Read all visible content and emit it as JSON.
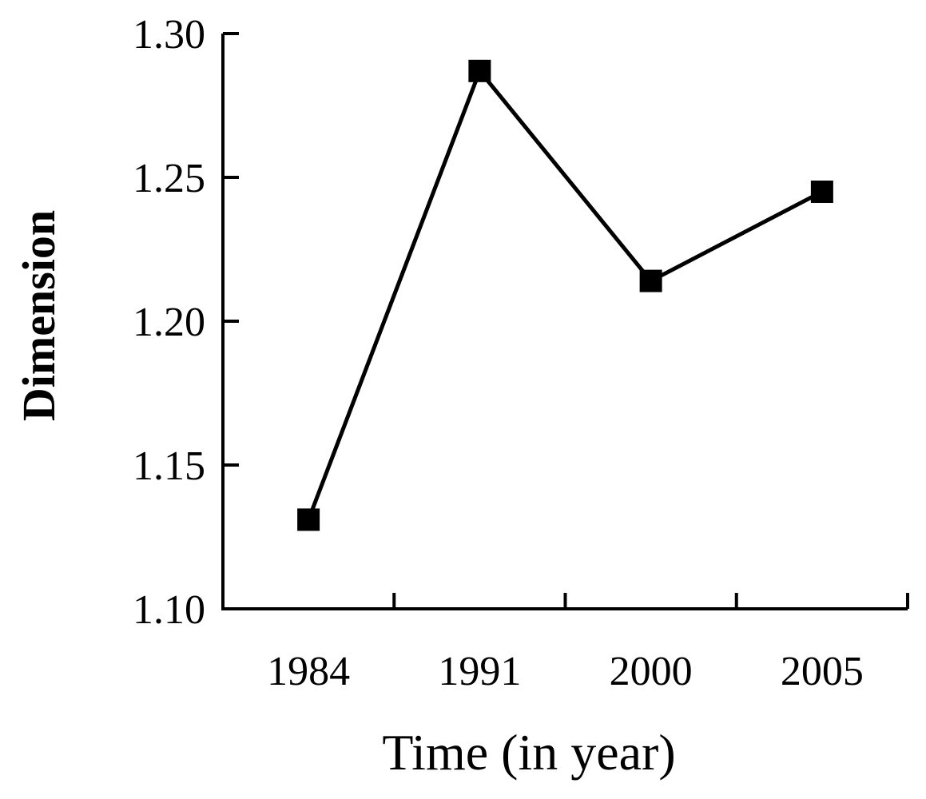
{
  "chart_data": {
    "type": "line",
    "title": "",
    "xlabel": "Time (in year)",
    "ylabel": "Dimension",
    "categories": [
      "1984",
      "1991",
      "2000",
      "2005"
    ],
    "series": [
      {
        "values": [
          1.131,
          1.287,
          1.214,
          1.245
        ],
        "marker": "square",
        "color": "#000000"
      }
    ],
    "ylim": [
      1.1,
      1.3
    ],
    "yticks": [
      "1.10",
      "1.15",
      "1.20",
      "1.25",
      "1.30"
    ],
    "grid": false,
    "legend": "none"
  }
}
